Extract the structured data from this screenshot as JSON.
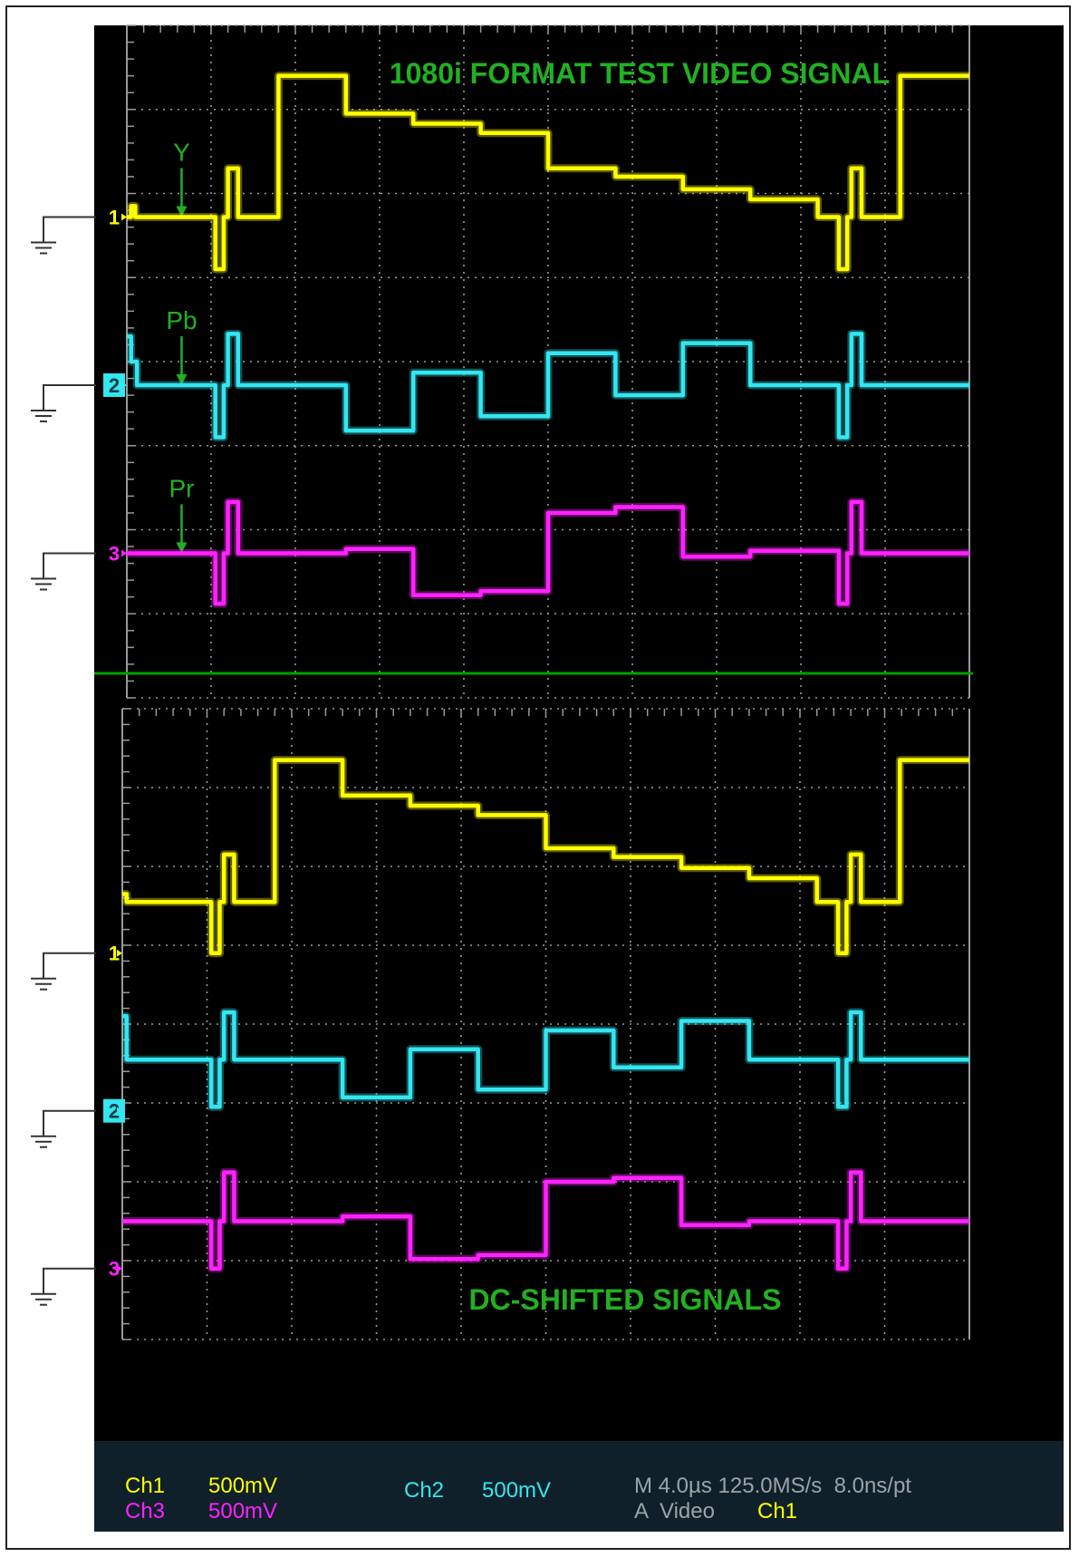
{
  "colors": {
    "background": "#000000",
    "grid": "#9a9a9a",
    "ch1": "#ffff00",
    "ch2": "#33e6f0",
    "ch3": "#ff22ff",
    "annotation": "#22b022",
    "divider": "#00a000",
    "status_bar": "#10202a"
  },
  "chart_data": [
    {
      "type": "line",
      "title": "1080i FORMAT TEST VIDEO SIGNAL",
      "xlabel": "",
      "ylabel": "",
      "grid": true,
      "x_divisions": 10,
      "y_divisions": 8,
      "x_unit": "div",
      "y_unit": "div",
      "xlim": [
        0,
        10
      ],
      "ylim": [
        0,
        8
      ],
      "channel_markers": [
        {
          "label": "1",
          "ground_level": 5.72,
          "color_key": "ch1"
        },
        {
          "label": "2",
          "ground_level": 3.72,
          "color_key": "ch2"
        },
        {
          "label": "3",
          "ground_level": 1.72,
          "color_key": "ch3"
        }
      ],
      "annotations": [
        {
          "text": "Y",
          "x": 0.65,
          "y": 5.72,
          "color_key": "annotation"
        },
        {
          "text": "Pb",
          "x": 0.65,
          "y": 3.72,
          "color_key": "annotation"
        },
        {
          "text": "Pr",
          "x": 0.65,
          "y": 1.72,
          "color_key": "annotation"
        }
      ],
      "series": [
        {
          "name": "Y",
          "color_key": "ch1",
          "x": [
            0,
            0.05,
            0.05,
            0.1,
            0.1,
            0.2,
            1.05,
            1.05,
            1.15,
            1.15,
            1.2,
            1.2,
            1.32,
            1.32,
            1.8,
            1.8,
            2.6,
            2.6,
            3.4,
            3.4,
            4.2,
            4.2,
            5.0,
            5.0,
            5.8,
            5.8,
            6.6,
            6.6,
            7.4,
            7.4,
            8.2,
            8.2,
            8.45,
            8.45,
            8.55,
            8.55,
            8.6,
            8.6,
            8.72,
            8.72,
            9.18,
            9.18,
            10
          ],
          "y": [
            5.72,
            5.72,
            5.85,
            5.85,
            5.72,
            5.72,
            5.72,
            5.1,
            5.1,
            5.72,
            5.72,
            6.3,
            6.3,
            5.72,
            5.72,
            7.4,
            7.4,
            6.95,
            6.95,
            6.83,
            6.83,
            6.72,
            6.72,
            6.3,
            6.3,
            6.2,
            6.2,
            6.05,
            6.05,
            5.93,
            5.93,
            5.72,
            5.72,
            5.1,
            5.1,
            5.72,
            5.72,
            6.3,
            6.3,
            5.72,
            5.72,
            7.4,
            7.4
          ]
        },
        {
          "name": "Pb",
          "color_key": "ch2",
          "x": [
            0,
            0.05,
            0.05,
            0.12,
            0.12,
            1.05,
            1.05,
            1.15,
            1.15,
            1.2,
            1.2,
            1.32,
            1.32,
            2.6,
            2.6,
            3.4,
            3.4,
            4.2,
            4.2,
            5.0,
            5.0,
            5.8,
            5.8,
            6.6,
            6.6,
            7.4,
            7.4,
            8.45,
            8.45,
            8.55,
            8.55,
            8.6,
            8.6,
            8.72,
            8.72,
            10
          ],
          "y": [
            4.3,
            4.3,
            4.0,
            4.0,
            3.72,
            3.72,
            3.1,
            3.1,
            3.72,
            3.72,
            4.33,
            4.33,
            3.72,
            3.72,
            3.18,
            3.18,
            3.87,
            3.87,
            3.35,
            3.35,
            4.1,
            4.1,
            3.6,
            3.6,
            4.22,
            4.22,
            3.72,
            3.72,
            3.1,
            3.1,
            3.72,
            3.72,
            4.33,
            4.33,
            3.72,
            3.72
          ]
        },
        {
          "name": "Pr",
          "color_key": "ch3",
          "x": [
            0,
            1.05,
            1.05,
            1.15,
            1.15,
            1.2,
            1.2,
            1.32,
            1.32,
            2.6,
            2.6,
            3.4,
            3.4,
            4.2,
            4.2,
            5.0,
            5.0,
            5.8,
            5.8,
            6.6,
            6.6,
            7.4,
            7.4,
            8.45,
            8.45,
            8.55,
            8.55,
            8.6,
            8.6,
            8.72,
            8.72,
            10
          ],
          "y": [
            1.72,
            1.72,
            1.12,
            1.12,
            1.72,
            1.72,
            2.33,
            2.33,
            1.72,
            1.72,
            1.77,
            1.77,
            1.22,
            1.22,
            1.27,
            1.27,
            2.2,
            2.2,
            2.27,
            2.27,
            1.68,
            1.68,
            1.75,
            1.75,
            1.12,
            1.12,
            1.72,
            1.72,
            2.33,
            2.33,
            1.72,
            1.72
          ]
        }
      ]
    },
    {
      "type": "line",
      "title": "DC-SHIFTED SIGNALS",
      "xlabel": "",
      "ylabel": "",
      "grid": true,
      "x_divisions": 10,
      "y_divisions": 8,
      "x_unit": "div",
      "y_unit": "div",
      "xlim": [
        0,
        10
      ],
      "ylim": [
        0,
        8
      ],
      "channel_markers": [
        {
          "label": "1",
          "ground_level": 4.9,
          "color_key": "ch1"
        },
        {
          "label": "2",
          "ground_level": 2.9,
          "color_key": "ch2"
        },
        {
          "label": "3",
          "ground_level": 0.9,
          "color_key": "ch3"
        }
      ],
      "annotations": [],
      "series": [
        {
          "name": "Y",
          "color_key": "ch1",
          "x": [
            0,
            0.05,
            0.05,
            0.1,
            0.1,
            0.2,
            1.05,
            1.05,
            1.15,
            1.15,
            1.2,
            1.2,
            1.32,
            1.32,
            1.8,
            1.8,
            2.6,
            2.6,
            3.4,
            3.4,
            4.2,
            4.2,
            5.0,
            5.0,
            5.8,
            5.8,
            6.6,
            6.6,
            7.4,
            7.4,
            8.2,
            8.2,
            8.45,
            8.45,
            8.55,
            8.55,
            8.6,
            8.6,
            8.72,
            8.72,
            9.18,
            9.18,
            10
          ],
          "y": [
            5.65,
            5.65,
            5.55,
            5.55,
            5.55,
            5.55,
            5.55,
            4.9,
            4.9,
            5.55,
            5.55,
            6.15,
            6.15,
            5.55,
            5.55,
            7.35,
            7.35,
            6.9,
            6.9,
            6.77,
            6.77,
            6.65,
            6.65,
            6.23,
            6.23,
            6.12,
            6.12,
            5.98,
            5.98,
            5.85,
            5.85,
            5.55,
            5.55,
            4.9,
            4.9,
            5.55,
            5.55,
            6.15,
            6.15,
            5.55,
            5.55,
            7.35,
            7.35
          ]
        },
        {
          "name": "Pb",
          "color_key": "ch2",
          "x": [
            0,
            0.05,
            0.05,
            0.12,
            0.12,
            1.05,
            1.05,
            1.15,
            1.15,
            1.2,
            1.2,
            1.32,
            1.32,
            2.6,
            2.6,
            3.4,
            3.4,
            4.2,
            4.2,
            5.0,
            5.0,
            5.8,
            5.8,
            6.6,
            6.6,
            7.4,
            7.4,
            8.45,
            8.45,
            8.55,
            8.55,
            8.6,
            8.6,
            8.72,
            8.72,
            10
          ],
          "y": [
            4.1,
            4.1,
            3.55,
            3.55,
            3.55,
            3.55,
            2.95,
            2.95,
            3.55,
            3.55,
            4.15,
            4.15,
            3.55,
            3.55,
            3.07,
            3.07,
            3.68,
            3.68,
            3.17,
            3.17,
            3.92,
            3.92,
            3.45,
            3.45,
            4.04,
            4.04,
            3.55,
            3.55,
            2.95,
            2.95,
            3.55,
            3.55,
            4.15,
            4.15,
            3.55,
            3.55
          ]
        },
        {
          "name": "Pr",
          "color_key": "ch3",
          "x": [
            0,
            1.05,
            1.05,
            1.15,
            1.15,
            1.2,
            1.2,
            1.32,
            1.32,
            2.6,
            2.6,
            3.4,
            3.4,
            4.2,
            4.2,
            5.0,
            5.0,
            5.8,
            5.8,
            6.6,
            6.6,
            7.4,
            7.4,
            8.45,
            8.45,
            8.55,
            8.55,
            8.6,
            8.6,
            8.72,
            8.72,
            10
          ],
          "y": [
            1.5,
            1.5,
            0.9,
            0.9,
            1.5,
            1.5,
            2.12,
            2.12,
            1.5,
            1.5,
            1.56,
            1.56,
            1.02,
            1.02,
            1.07,
            1.07,
            2.0,
            2.0,
            2.05,
            2.05,
            1.45,
            1.45,
            1.5,
            1.5,
            0.9,
            0.9,
            1.5,
            1.5,
            2.12,
            2.12,
            1.5,
            1.5
          ]
        }
      ]
    }
  ],
  "status_bar": {
    "ch1_label": "Ch1",
    "ch1_scale": "500mV",
    "ch3_label": "Ch3",
    "ch3_scale": "500mV",
    "ch2_label": "Ch2",
    "ch2_scale": "500mV",
    "timebase": "M 4.0µs 125.0MS/s  8.0ns/pt",
    "trigger_prefix": "A  Video",
    "trigger_source": "Ch1"
  }
}
